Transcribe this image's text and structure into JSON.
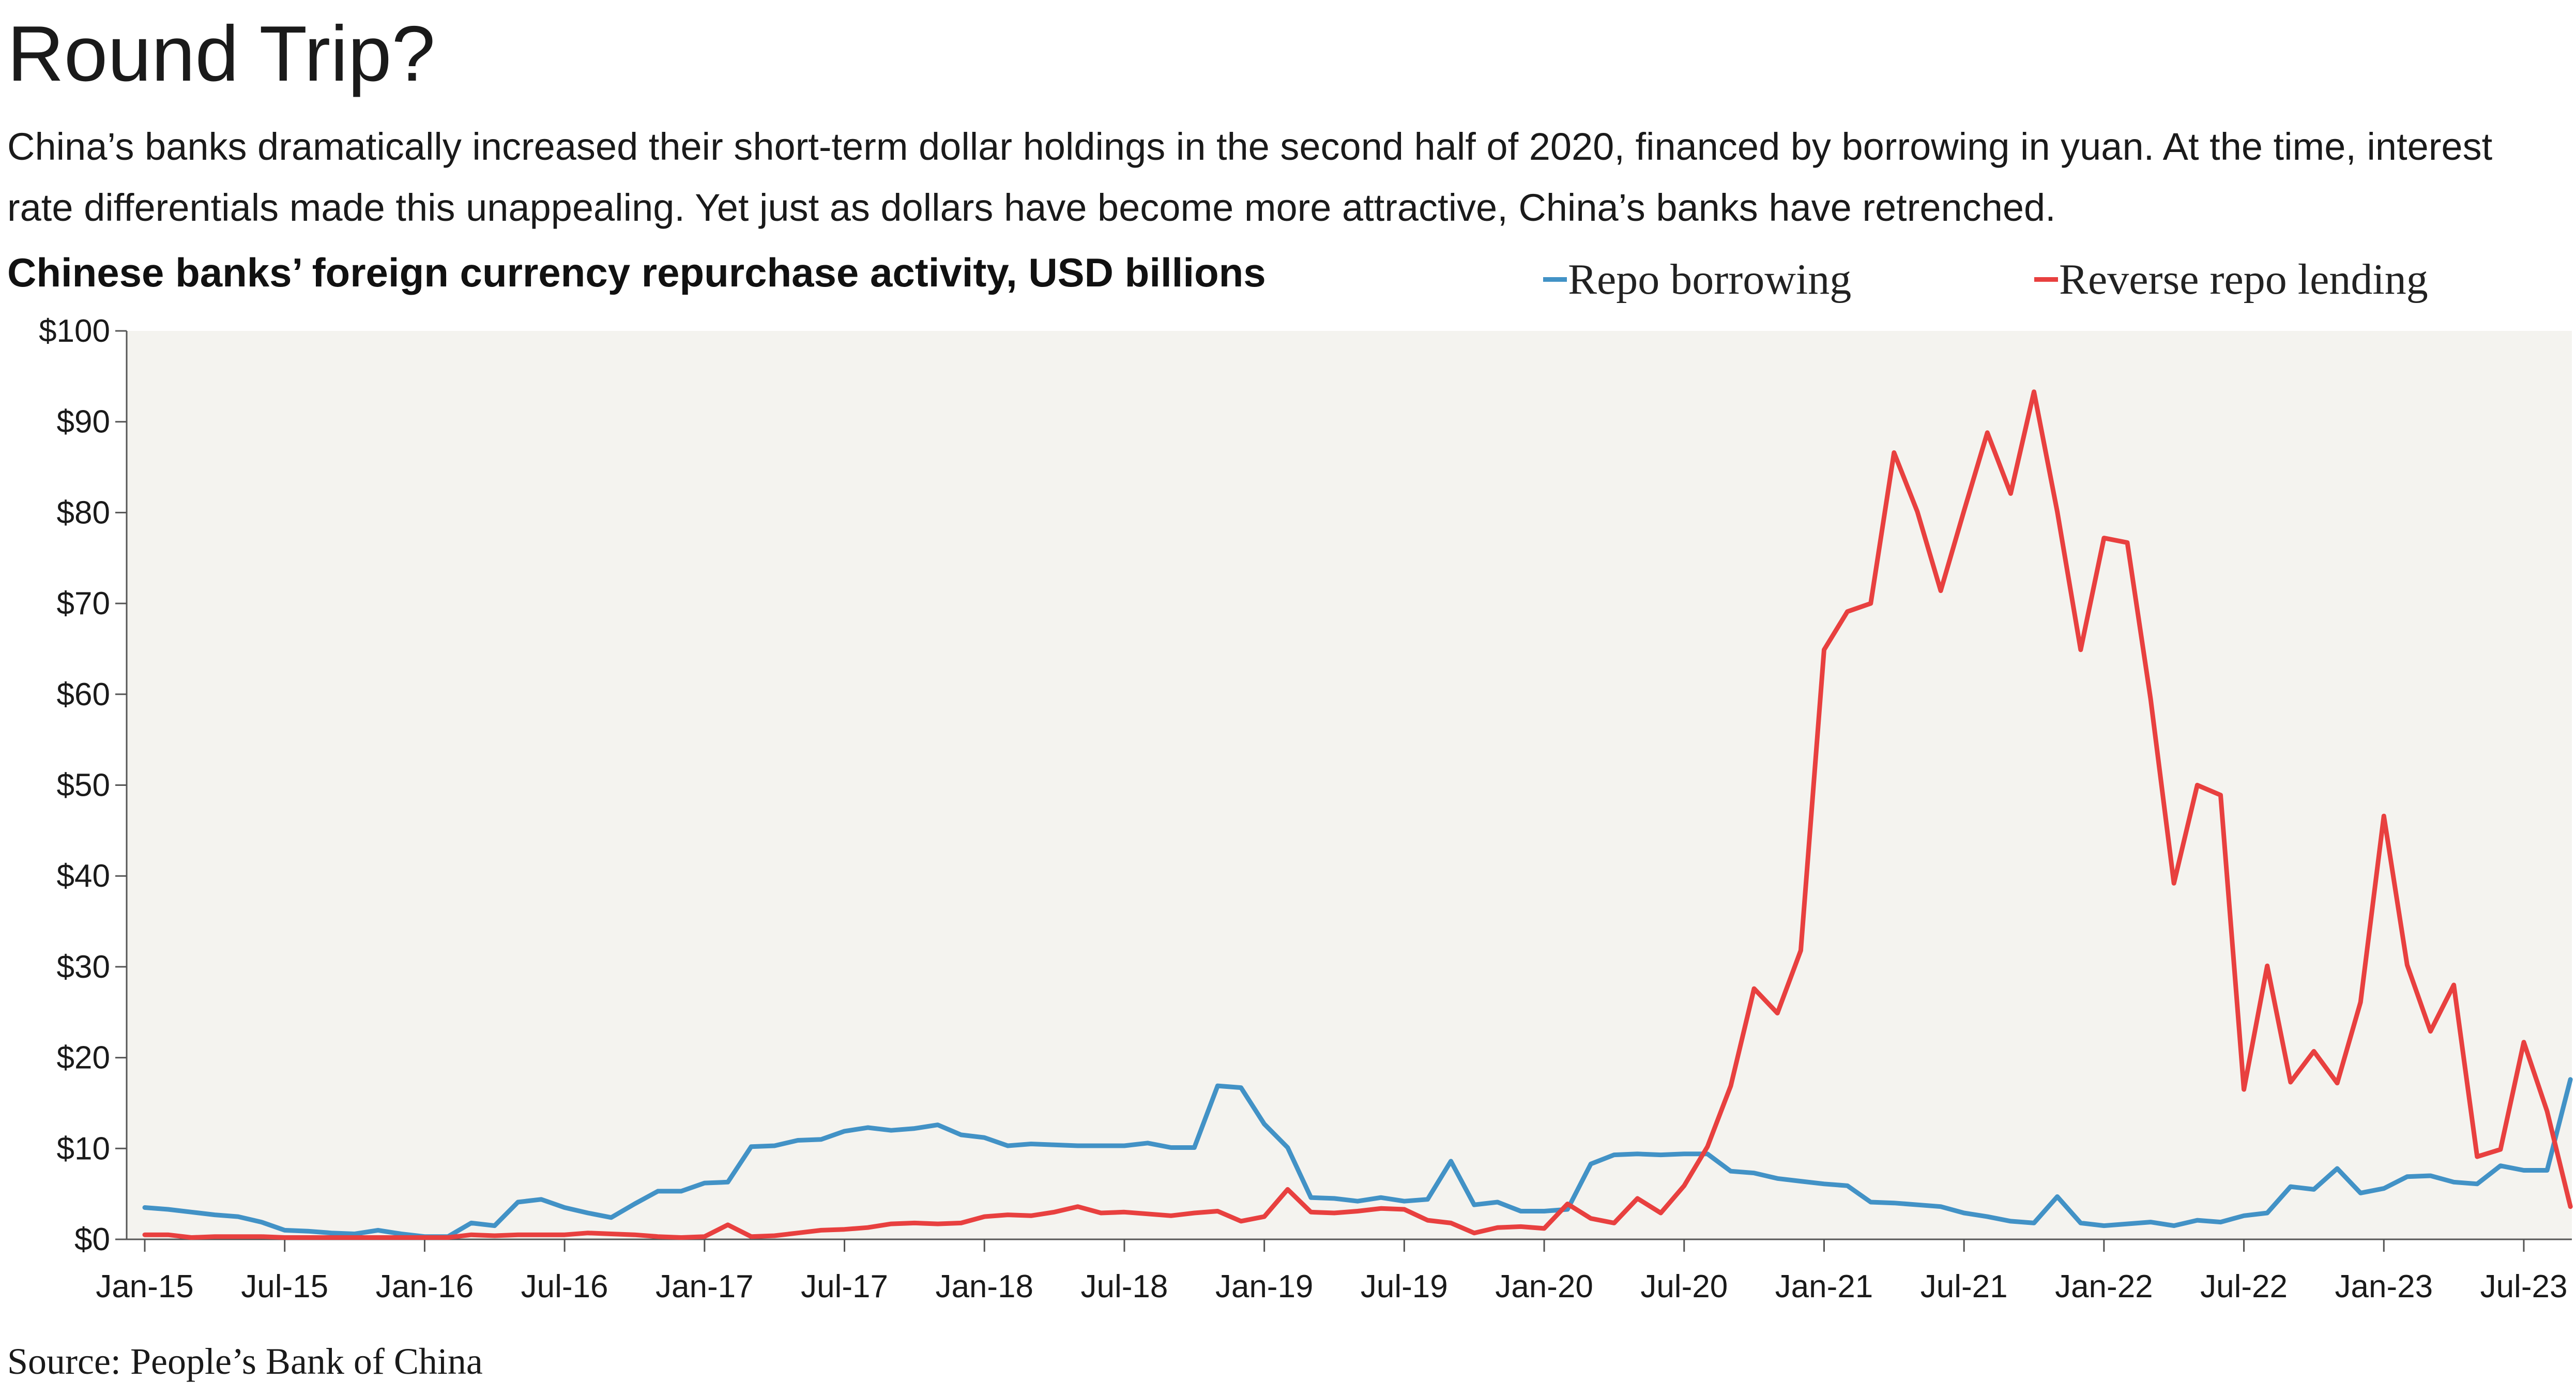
{
  "title": "Round Trip?",
  "subtitle": "China’s banks dramatically increased their short-term dollar holdings in the second half of 2020, financed by borrowing in yuan. At the time, interest rate differentials made this unappealing. Yet just as dollars have become more attractive, China’s banks have retrenched.",
  "source": "Source: People’s Bank of China",
  "colors": {
    "repo": "#4292c6",
    "reverse": "#e8403f",
    "plot_background": "#f4f3ef",
    "axis": "#555555"
  },
  "chart_data": {
    "type": "line",
    "title": "Chinese banks’ foreign currency repurchase activity, USD billions",
    "xlabel": "",
    "ylabel": "",
    "ylim": [
      0,
      100
    ],
    "y_ticks": [
      0,
      10,
      20,
      30,
      40,
      50,
      60,
      70,
      80,
      90,
      100
    ],
    "y_tick_labels": [
      "$0",
      "$10",
      "$20",
      "$30",
      "$40",
      "$50",
      "$60",
      "$70",
      "$80",
      "$90",
      "$100"
    ],
    "x_tick_labels": [
      "Jan-15",
      "Jul-15",
      "Jan-16",
      "Jul-16",
      "Jan-17",
      "Jul-17",
      "Jan-18",
      "Jul-18",
      "Jan-19",
      "Jul-19",
      "Jan-20",
      "Jul-20",
      "Jan-21",
      "Jul-21",
      "Jan-22",
      "Jul-22",
      "Jan-23",
      "Jul-23"
    ],
    "x_start": "2015-01",
    "x_end": "2023-09",
    "grid": false,
    "legend_position": "top-right",
    "series": [
      {
        "name": "Repo borrowing",
        "color_key": "repo",
        "values": [
          3.5,
          3.3,
          3.0,
          2.7,
          2.5,
          1.9,
          1.0,
          0.9,
          0.7,
          0.6,
          1.0,
          0.6,
          0.3,
          0.3,
          1.8,
          1.5,
          4.1,
          4.4,
          3.5,
          2.9,
          2.4,
          3.9,
          5.3,
          5.3,
          6.2,
          6.3,
          10.2,
          10.3,
          10.9,
          11.0,
          11.9,
          12.3,
          12.0,
          12.2,
          12.6,
          11.5,
          11.2,
          10.3,
          10.5,
          10.4,
          10.3,
          10.3,
          10.3,
          10.6,
          10.1,
          10.1,
          16.9,
          16.7,
          12.7,
          10.1,
          4.6,
          4.5,
          4.2,
          4.6,
          4.2,
          4.4,
          8.6,
          3.8,
          4.1,
          3.1,
          3.1,
          3.3,
          8.3,
          9.3,
          9.4,
          9.3,
          9.4,
          9.4,
          7.5,
          7.3,
          6.7,
          6.4,
          6.1,
          5.9,
          4.1,
          4.0,
          3.8,
          3.6,
          2.9,
          2.5,
          2.0,
          1.8,
          4.7,
          1.8,
          1.5,
          1.7,
          1.9,
          1.5,
          2.1,
          1.9,
          2.6,
          2.9,
          5.8,
          5.5,
          7.8,
          5.1,
          5.6,
          6.9,
          7.0,
          6.3,
          6.1,
          8.1,
          7.6,
          7.6,
          17.6
        ]
      },
      {
        "name": "Reverse repo lending",
        "color_key": "reverse",
        "values": [
          0.5,
          0.5,
          0.2,
          0.3,
          0.3,
          0.3,
          0.2,
          0.2,
          0.2,
          0.2,
          0.2,
          0.2,
          0.2,
          0.2,
          0.5,
          0.4,
          0.5,
          0.5,
          0.5,
          0.7,
          0.6,
          0.5,
          0.3,
          0.2,
          0.3,
          1.6,
          0.3,
          0.4,
          0.7,
          1.0,
          1.1,
          1.3,
          1.7,
          1.8,
          1.7,
          1.8,
          2.5,
          2.7,
          2.6,
          3.0,
          3.6,
          2.9,
          3.0,
          2.8,
          2.6,
          2.9,
          3.1,
          2.0,
          2.5,
          5.5,
          3.0,
          2.9,
          3.1,
          3.4,
          3.3,
          2.1,
          1.8,
          0.7,
          1.3,
          1.4,
          1.2,
          3.9,
          2.3,
          1.8,
          4.5,
          2.9,
          5.9,
          10.2,
          16.9,
          27.6,
          24.9,
          31.8,
          64.9,
          69.1,
          70.0,
          86.6,
          80.1,
          71.4,
          80.2,
          88.8,
          82.1,
          93.3,
          80.1,
          64.9,
          77.2,
          76.7,
          59.5,
          39.2,
          50.0,
          48.9,
          16.5,
          30.1,
          17.3,
          20.7,
          17.2,
          26.1,
          46.6,
          30.2,
          22.9,
          28.0,
          9.1,
          9.9,
          21.7,
          14.1,
          3.6
        ]
      }
    ]
  }
}
